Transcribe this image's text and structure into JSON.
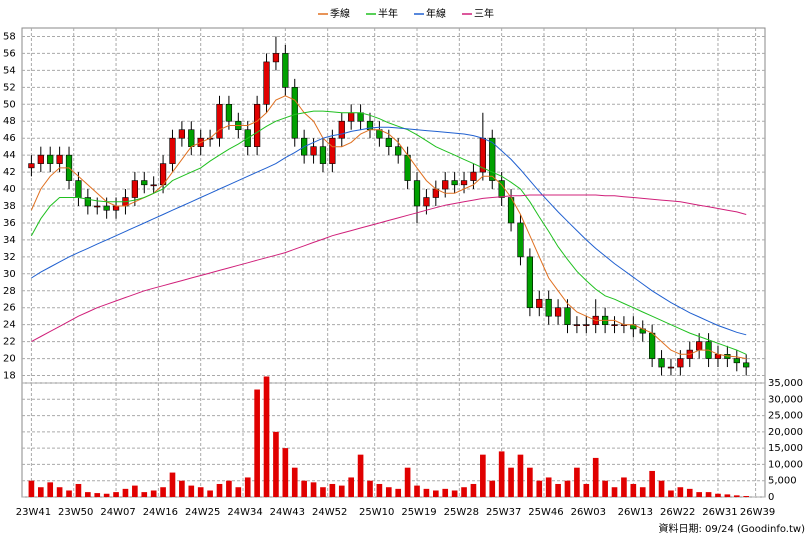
{
  "chart_data": {
    "type": "candlestick",
    "source": "資料日期: 09/24 (Goodinfo.tw)",
    "up_color": "#e00000",
    "down_color": "#00a000",
    "volume_color": "#e00000",
    "grid": true,
    "x": [
      0,
      2,
      4,
      6,
      8,
      10,
      12,
      14,
      16,
      18,
      20,
      22,
      24,
      26,
      28,
      30,
      32,
      34,
      36,
      38,
      40,
      42,
      44,
      46,
      48,
      50,
      52,
      54,
      56,
      58,
      60,
      62,
      64,
      66,
      68,
      70,
      72,
      74,
      76,
      78,
      80,
      82,
      84,
      86,
      88,
      90,
      92,
      94,
      96,
      98,
      100,
      102,
      104,
      106,
      108,
      110,
      112,
      114,
      116,
      118,
      120,
      122,
      124,
      126,
      128,
      130,
      132,
      134,
      136,
      138,
      140,
      142,
      144,
      146,
      148,
      150,
      152
    ],
    "xlim": [
      -2,
      156
    ],
    "xticks": [
      {
        "value": 0,
        "label": "23W41"
      },
      {
        "value": 9,
        "label": "23W50"
      },
      {
        "value": 18,
        "label": "24W07"
      },
      {
        "value": 27,
        "label": "24W16"
      },
      {
        "value": 36,
        "label": "24W25"
      },
      {
        "value": 45,
        "label": "24W34"
      },
      {
        "value": 54,
        "label": "24W43"
      },
      {
        "value": 63,
        "label": "24W52"
      },
      {
        "value": 73,
        "label": "25W10"
      },
      {
        "value": 82,
        "label": "25W19"
      },
      {
        "value": 91,
        "label": "25W28"
      },
      {
        "value": 100,
        "label": "25W37"
      },
      {
        "value": 109,
        "label": "25W46"
      },
      {
        "value": 118,
        "label": "26W03"
      },
      {
        "value": 128,
        "label": "26W13"
      },
      {
        "value": 137,
        "label": "26W22"
      },
      {
        "value": 146,
        "label": "26W31"
      },
      {
        "value": 154,
        "label": "26W39"
      }
    ],
    "open": [
      42.5,
      43,
      44,
      43,
      44,
      41,
      39,
      38,
      38,
      37.5,
      38,
      39,
      41,
      40.5,
      40.5,
      43,
      46,
      47,
      45,
      46,
      46,
      50,
      48,
      47,
      45,
      50,
      55,
      56,
      52,
      46,
      44,
      45,
      43,
      46,
      48,
      49,
      48,
      47,
      46,
      45,
      44,
      41,
      38,
      39,
      40,
      41,
      40.5,
      41,
      42,
      46,
      41,
      39,
      36,
      32,
      26,
      27,
      25,
      26,
      24,
      24,
      24,
      25,
      24,
      24,
      24,
      23.5,
      23,
      20,
      19,
      19,
      20,
      21,
      22,
      20,
      20.5,
      20,
      19.5
    ],
    "high": [
      44,
      45,
      45,
      45,
      45,
      42,
      40,
      39,
      39,
      39,
      40,
      42,
      42,
      41.5,
      44,
      47,
      48,
      48,
      47,
      47,
      51,
      51,
      49,
      48,
      51,
      56,
      58,
      57,
      53,
      47,
      46,
      46,
      47,
      49,
      50,
      50,
      49,
      48,
      47,
      46,
      45,
      42,
      40,
      41,
      42,
      42,
      42,
      43,
      49,
      47,
      42,
      40,
      37,
      33,
      28,
      28,
      27,
      27,
      25,
      25,
      27,
      26,
      25,
      25,
      25,
      24.5,
      24,
      21,
      20,
      21,
      22,
      23,
      23,
      21.5,
      21.5,
      21,
      20.5
    ],
    "low": [
      41.5,
      42,
      42,
      42,
      40,
      38,
      37,
      37,
      36.5,
      36.5,
      37,
      38,
      39.5,
      39.5,
      39.5,
      42,
      45,
      44,
      44,
      45,
      45,
      47,
      46,
      44,
      44,
      49,
      54,
      51,
      45,
      43,
      43,
      42,
      42,
      45,
      47,
      47,
      46,
      45,
      44,
      43,
      40,
      36,
      37,
      38,
      39,
      39.5,
      39.5,
      40,
      41,
      40,
      38,
      35,
      31,
      25,
      25,
      24,
      24,
      23,
      23,
      23,
      23,
      23,
      23,
      23,
      22.5,
      22,
      19,
      18,
      18,
      18,
      19,
      20,
      19,
      19,
      19,
      18.5,
      18
    ],
    "close": [
      43,
      44,
      43,
      44,
      41,
      39,
      38,
      38,
      37.5,
      38,
      39,
      41,
      40.5,
      40.5,
      43,
      46,
      47,
      45,
      46,
      46,
      50,
      48,
      47,
      45,
      50,
      55,
      56,
      52,
      46,
      44,
      45,
      43,
      46,
      48,
      49,
      48,
      47,
      46,
      45,
      44,
      41,
      38,
      39,
      40,
      41,
      40.5,
      41,
      42,
      46,
      41,
      39,
      36,
      32,
      26,
      27,
      25,
      26,
      24,
      24,
      24,
      25,
      24,
      24,
      24,
      23.5,
      23,
      20,
      19,
      19,
      20,
      21,
      22,
      20,
      20.5,
      20,
      19.5,
      19
    ],
    "volume": [
      5000,
      3000,
      4500,
      3000,
      2000,
      4000,
      1500,
      1200,
      1000,
      1500,
      2500,
      3500,
      1500,
      2000,
      3000,
      7500,
      5000,
      3500,
      3000,
      2000,
      4000,
      5000,
      3000,
      6000,
      33000,
      37000,
      20000,
      15000,
      9000,
      5000,
      4500,
      3000,
      4000,
      3500,
      6000,
      13000,
      5000,
      4000,
      3000,
      2500,
      9000,
      3500,
      2500,
      2000,
      2500,
      2000,
      3000,
      4000,
      13000,
      5000,
      14000,
      9000,
      13000,
      9000,
      5000,
      6000,
      4000,
      5000,
      9000,
      4000,
      12000,
      5000,
      3000,
      6000,
      4000,
      3000,
      8000,
      5000,
      2000,
      3000,
      2500,
      1500,
      1500,
      1000,
      800,
      500,
      300
    ],
    "ylim": [
      17,
      59
    ],
    "yticks": [
      18,
      20,
      22,
      24,
      26,
      28,
      30,
      32,
      34,
      36,
      38,
      40,
      42,
      44,
      46,
      48,
      50,
      52,
      54,
      56,
      58
    ],
    "volume_ylim": [
      0,
      35000
    ],
    "volume_yticks": [
      0,
      {
        "value": 5000,
        "label": "5,000"
      },
      {
        "value": 10000,
        "label": "10,000"
      },
      {
        "value": 15000,
        "label": "15,000"
      },
      {
        "value": 20000,
        "label": "20,000"
      },
      {
        "value": 25000,
        "label": "25,000"
      },
      {
        "value": 30000,
        "label": "30,000"
      },
      {
        "value": 35000,
        "label": "35,000"
      }
    ],
    "series": [
      {
        "name": "季線",
        "color": "#e07020",
        "values": [
          37.5,
          40,
          41.5,
          42.5,
          42.5,
          41.5,
          40.5,
          39.5,
          38.5,
          38,
          38,
          38.5,
          39,
          39.5,
          40.5,
          42,
          43.5,
          45,
          45.5,
          46,
          47,
          47.5,
          47.5,
          47.5,
          48,
          49,
          50.5,
          51,
          50.5,
          49,
          48,
          46,
          45,
          45,
          45.5,
          46.5,
          47,
          47,
          46.5,
          45.5,
          44,
          42.5,
          41,
          40,
          39.5,
          39.5,
          40,
          40.5,
          41.5,
          41.5,
          40.5,
          39,
          37,
          34.5,
          32,
          29.5,
          28,
          26.5,
          25.5,
          25,
          24.5,
          24.5,
          24.5,
          24,
          24,
          23.5,
          23,
          22,
          21,
          20.5,
          20.5,
          21,
          21,
          20.5,
          20.3,
          20.2,
          20
        ]
      },
      {
        "name": "半年",
        "color": "#20c020",
        "values": [
          34.5,
          36.5,
          38,
          39,
          39,
          39,
          38.8,
          38.6,
          38.5,
          38.5,
          38.5,
          38.7,
          39,
          39.5,
          40,
          41,
          41.5,
          42,
          42.5,
          43.3,
          44,
          44.7,
          45.3,
          46,
          46.7,
          47.4,
          48,
          48.4,
          48.8,
          49,
          49.2,
          49.2,
          49.1,
          49,
          49,
          49,
          48.7,
          48.3,
          47.8,
          47.4,
          47,
          46.4,
          45.7,
          45,
          44.5,
          44,
          43.5,
          43,
          42.5,
          42,
          41.5,
          40.8,
          40,
          38.5,
          36.7,
          35,
          33.2,
          31.7,
          30.3,
          29.2,
          28.2,
          27.4,
          27,
          26.5,
          26,
          25.5,
          25,
          24.5,
          24,
          23.5,
          23,
          22.6,
          22.2,
          21.8,
          21.4,
          21,
          20.5
        ]
      },
      {
        "name": "年線",
        "color": "#2060d0",
        "values": [
          29.5,
          30.2,
          30.8,
          31.4,
          32,
          32.5,
          33,
          33.5,
          34,
          34.5,
          35,
          35.5,
          36,
          36.5,
          37,
          37.5,
          38,
          38.5,
          39,
          39.5,
          40,
          40.5,
          41,
          41.5,
          42,
          42.5,
          43,
          43.7,
          44.3,
          45,
          45.5,
          46,
          46.3,
          46.5,
          46.8,
          47,
          47.2,
          47.3,
          47.3,
          47.2,
          47.1,
          47,
          46.9,
          46.8,
          46.7,
          46.6,
          46.5,
          46.3,
          46,
          45.5,
          44.5,
          43.5,
          42.3,
          41,
          39.7,
          38.5,
          37.3,
          36.2,
          35.1,
          34,
          33,
          32.1,
          31.2,
          30.4,
          29.6,
          28.8,
          28,
          27.3,
          26.6,
          26,
          25.4,
          24.9,
          24.4,
          23.9,
          23.5,
          23.1,
          22.8
        ]
      },
      {
        "name": "三年",
        "color": "#d0207a",
        "values": [
          22,
          22.6,
          23.2,
          23.8,
          24.4,
          25,
          25.5,
          26,
          26.4,
          26.8,
          27.2,
          27.6,
          28,
          28.3,
          28.6,
          28.9,
          29.2,
          29.5,
          29.8,
          30.1,
          30.4,
          30.7,
          31,
          31.3,
          31.6,
          31.9,
          32.2,
          32.5,
          32.9,
          33.3,
          33.7,
          34.1,
          34.5,
          34.8,
          35.1,
          35.4,
          35.7,
          36,
          36.3,
          36.6,
          36.9,
          37.2,
          37.5,
          37.8,
          38.1,
          38.3,
          38.5,
          38.7,
          38.9,
          39,
          39.1,
          39.2,
          39.2,
          39.3,
          39.3,
          39.3,
          39.3,
          39.3,
          39.3,
          39.3,
          39.3,
          39.2,
          39.2,
          39.1,
          39,
          38.9,
          38.8,
          38.7,
          38.6,
          38.5,
          38.3,
          38.1,
          37.9,
          37.7,
          37.5,
          37.3,
          37
        ]
      }
    ]
  }
}
